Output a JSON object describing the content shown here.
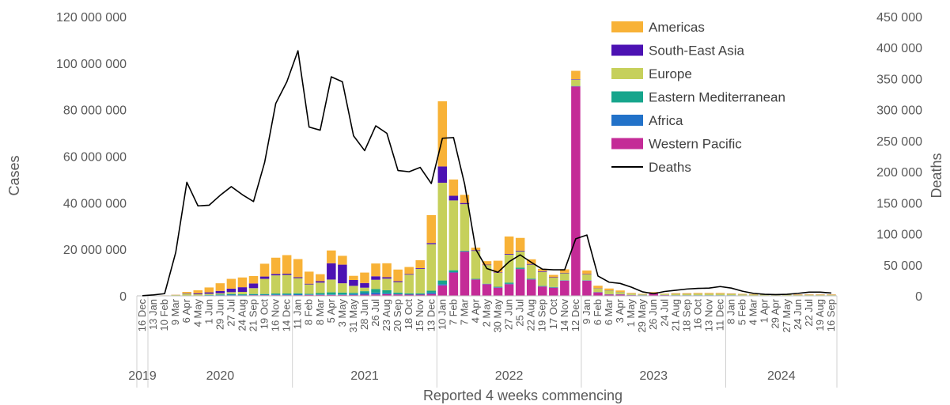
{
  "chart_data": {
    "type": "bar",
    "stacked": true,
    "x_title": "Reported 4 weeks commencing",
    "y_title": "Cases",
    "y2_title": "Deaths",
    "ylim": [
      0,
      120000000
    ],
    "y2lim": [
      0,
      450000
    ],
    "y_ticks": [
      {
        "value": 0,
        "label": "0"
      },
      {
        "value": 20000000,
        "label": "20 000 000"
      },
      {
        "value": 40000000,
        "label": "40 000 000"
      },
      {
        "value": 60000000,
        "label": "60 000 000"
      },
      {
        "value": 80000000,
        "label": "80 000 000"
      },
      {
        "value": 100000000,
        "label": "100 000 000"
      },
      {
        "value": 120000000,
        "label": "120 000 000"
      }
    ],
    "y2_ticks": [
      {
        "value": 0,
        "label": "0"
      },
      {
        "value": 50000,
        "label": "50 000"
      },
      {
        "value": 100000,
        "label": "100 000"
      },
      {
        "value": 150000,
        "label": "150 000"
      },
      {
        "value": 200000,
        "label": "200 000"
      },
      {
        "value": 250000,
        "label": "250 000"
      },
      {
        "value": 300000,
        "label": "300 000"
      },
      {
        "value": 350000,
        "label": "350 000"
      },
      {
        "value": 400000,
        "label": "400 000"
      },
      {
        "value": 450000,
        "label": "450 000"
      }
    ],
    "categories": [
      "16 Dec",
      "13 Jan",
      "10 Feb",
      "9 Mar",
      "6 Apr",
      "4 May",
      "1 Jun",
      "29 Jun",
      "27 Jul",
      "24 Aug",
      "21 Sep",
      "19 Oct",
      "16 Nov",
      "14 Dec",
      "11 Jan",
      "8 Feb",
      "8 Mar",
      "5 Apr",
      "3 May",
      "31 May",
      "28 Jun",
      "26 Jul",
      "23 Aug",
      "20 Sep",
      "18 Oct",
      "15 Nov",
      "13 Dec",
      "10 Jan",
      "7 Feb",
      "7 Mar",
      "4 Apr",
      "2 May",
      "30 May",
      "27 Jun",
      "25 Jul",
      "22 Aug",
      "19 Sep",
      "17 Oct",
      "14 Nov",
      "12 Dec",
      "9 Jan",
      "6 Feb",
      "6 Mar",
      "3 Apr",
      "1 May",
      "29 May",
      "26 Jun",
      "24 Jul",
      "21 Aug",
      "18 Sep",
      "16 Oct",
      "13 Nov",
      "11 Dec",
      "8 Jan",
      "5 Feb",
      "4 Mar",
      "1 Apr",
      "29 Apr",
      "27 May",
      "24 Jun",
      "22 Jul",
      "19 Aug",
      "16 Sep"
    ],
    "year_groups": [
      {
        "label": "2019",
        "start": 0,
        "end": 0
      },
      {
        "label": "2020",
        "start": 1,
        "end": 13
      },
      {
        "label": "2021",
        "start": 14,
        "end": 26
      },
      {
        "label": "2022",
        "start": 27,
        "end": 39
      },
      {
        "label": "2023",
        "start": 40,
        "end": 52
      },
      {
        "label": "2024",
        "start": 53,
        "end": 62
      }
    ],
    "legend_position": "top-right",
    "series": [
      {
        "name": "Western Pacific",
        "color": "#c42b97",
        "values": [
          0,
          0,
          0.1,
          0.05,
          0.03,
          0.05,
          0.1,
          0.15,
          0.2,
          0.2,
          0.3,
          0.3,
          0.3,
          0.3,
          0.3,
          0.4,
          0.4,
          0.4,
          0.4,
          0.4,
          0.5,
          0.6,
          0.7,
          0.6,
          0.5,
          0.5,
          0.8,
          4.5,
          10,
          19,
          7,
          5,
          3.5,
          5,
          11.5,
          7,
          4,
          3.5,
          6.5,
          90,
          6.5,
          1.5,
          0.6,
          0.6,
          0.3,
          0.2,
          1,
          0.3,
          0.2,
          0.2,
          0.2,
          0.2,
          0.2,
          0.2,
          0.1,
          0.1,
          0.1,
          0.1,
          0.1,
          0.1,
          0.1,
          0.1,
          0.1
        ]
      },
      {
        "name": "Africa",
        "color": "#2272c9",
        "values": [
          0,
          0,
          0,
          0,
          0.02,
          0.03,
          0.1,
          0.15,
          0.3,
          0.2,
          0.2,
          0.2,
          0.3,
          0.3,
          0.4,
          0.2,
          0.2,
          0.2,
          0.2,
          0.4,
          0.7,
          0.8,
          0.4,
          0.2,
          0.2,
          0.2,
          0.6,
          0.5,
          0.2,
          0.1,
          0.1,
          0.1,
          0.2,
          0.2,
          0.1,
          0.1,
          0.1,
          0.1,
          0.1,
          0.1,
          0.1,
          0.05,
          0.05,
          0.05,
          0.05,
          0.05,
          0.05,
          0.05,
          0.05,
          0.05,
          0.05,
          0.05,
          0.05,
          0.05,
          0.05,
          0.05,
          0.05,
          0.05,
          0.05,
          0.05,
          0.05,
          0.05,
          0.05
        ]
      },
      {
        "name": "Eastern Mediterranean",
        "color": "#16a58c",
        "values": [
          0,
          0,
          0,
          0,
          0.05,
          0.1,
          0.2,
          0.3,
          0.3,
          0.3,
          0.3,
          0.3,
          0.4,
          0.4,
          0.4,
          0.3,
          0.6,
          0.9,
          0.8,
          0.5,
          0.8,
          1.5,
          1.3,
          0.6,
          0.4,
          0.4,
          0.8,
          1.6,
          0.8,
          0.3,
          0.2,
          0.1,
          0.2,
          0.5,
          0.5,
          0.3,
          0.2,
          0.2,
          0.1,
          0.1,
          0.1,
          0.1,
          0.1,
          0.1,
          0.05,
          0.05,
          0.05,
          0.05,
          0.05,
          0.05,
          0.05,
          0.05,
          0.05,
          0.05,
          0.05,
          0.05,
          0.05,
          0.05,
          0.05,
          0.05,
          0.05,
          0.05,
          0.05
        ]
      },
      {
        "name": "Europe",
        "color": "#c6d05b",
        "values": [
          0,
          0,
          0.05,
          0.3,
          0.8,
          0.5,
          0.5,
          0.5,
          0.8,
          1,
          2.5,
          6.5,
          7.8,
          8,
          6.5,
          4,
          4.5,
          5.5,
          4,
          3,
          1.5,
          4,
          5,
          4.5,
          8,
          10.5,
          20,
          42,
          30,
          20,
          12,
          8,
          6,
          12,
          7,
          6,
          6,
          4,
          3,
          2.7,
          2.5,
          1.5,
          1.5,
          0.9,
          0.5,
          0.3,
          0.3,
          0.3,
          0.5,
          0.5,
          0.6,
          0.6,
          0.6,
          0.5,
          0.4,
          0.3,
          0.3,
          0.3,
          0.3,
          0.2,
          0.2,
          0.2,
          0.2
        ]
      },
      {
        "name": "South-East Asia",
        "color": "#4c12b3",
        "values": [
          0,
          0,
          0,
          0.05,
          0.2,
          0.4,
          0.6,
          1,
          1.5,
          2,
          2,
          1,
          0.6,
          0.5,
          0.4,
          0.3,
          0.6,
          7,
          8,
          2.5,
          2,
          1.5,
          0.6,
          0.4,
          0.3,
          0.3,
          0.5,
          7,
          2,
          0.5,
          0.3,
          0.2,
          0.2,
          0.3,
          0.3,
          0.3,
          0.3,
          0.2,
          0.2,
          0.2,
          0.2,
          0.1,
          0.1,
          0.05,
          0.05,
          0.05,
          0.05,
          0.05,
          0.05,
          0.05,
          0.05,
          0.05,
          0.05,
          0.05,
          0.05,
          0.05,
          0.05,
          0.05,
          0.05,
          0.05,
          0.05,
          0.05,
          0.05
        ]
      },
      {
        "name": "Americas",
        "color": "#f8b237",
        "values": [
          0,
          0,
          0.05,
          0.1,
          0.6,
          1.3,
          2.1,
          3.3,
          4.2,
          4.2,
          3.2,
          5.5,
          7,
          8,
          7.8,
          5.2,
          3,
          5.5,
          3.8,
          1.8,
          4.5,
          5.5,
          6,
          5,
          3,
          3.4,
          12,
          28,
          7,
          3.5,
          1.1,
          1.5,
          5,
          7.5,
          5.5,
          2,
          1,
          1,
          1.5,
          3.6,
          1.5,
          1.1,
          0.8,
          0.6,
          0.3,
          0.2,
          0.2,
          0.2,
          0.3,
          0.3,
          0.3,
          0.3,
          0.3,
          0.2,
          0.2,
          0.2,
          0.2,
          0.2,
          0.2,
          0.2,
          0.2,
          0.2,
          0.2
        ]
      }
    ],
    "series_units_note": "",
    "line_series": {
      "name": "Deaths",
      "color": "#000000",
      "axis": "right",
      "values": [
        200,
        1500,
        3500,
        70000,
        183000,
        145000,
        146000,
        162000,
        176000,
        163000,
        152000,
        215000,
        310000,
        345000,
        395000,
        272000,
        267000,
        353000,
        345000,
        258000,
        234000,
        274000,
        262000,
        202000,
        200000,
        207000,
        181000,
        254000,
        255000,
        180000,
        75000,
        44000,
        38000,
        55000,
        66000,
        54000,
        43000,
        42000,
        42000,
        92000,
        98000,
        32000,
        22000,
        20000,
        14000,
        6500,
        3500,
        7000,
        9000,
        11000,
        12000,
        12500,
        15000,
        12500,
        7500,
        4000,
        2500,
        2000,
        2500,
        4000,
        6000,
        6000,
        4500
      ]
    },
    "legend": [
      {
        "name": "Americas",
        "color": "#f8b237",
        "kind": "bar"
      },
      {
        "name": "South-East Asia",
        "color": "#4c12b3",
        "kind": "bar"
      },
      {
        "name": "Europe",
        "color": "#c6d05b",
        "kind": "bar"
      },
      {
        "name": "Eastern Mediterranean",
        "color": "#16a58c",
        "kind": "bar"
      },
      {
        "name": "Africa",
        "color": "#2272c9",
        "kind": "bar"
      },
      {
        "name": "Western Pacific",
        "color": "#c42b97",
        "kind": "bar"
      },
      {
        "name": "Deaths",
        "color": "#000000",
        "kind": "line"
      }
    ],
    "bar_value_scale": 1000000
  }
}
